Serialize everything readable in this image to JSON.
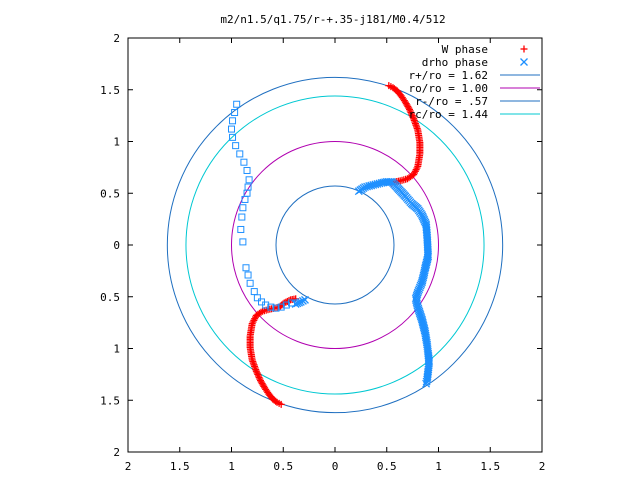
{
  "chart_data": {
    "type": "scatter",
    "title": "m2/n1.5/q1.75/r-+.35-j181/M0.4/512",
    "xlabel": "",
    "ylabel": "",
    "xlim": [
      -2,
      2
    ],
    "ylim": [
      -2,
      2
    ],
    "x_tick_labels": [
      "2",
      "1.5",
      "1",
      "0.5",
      "0",
      "0.5",
      "1",
      "1.5",
      "2"
    ],
    "x_tick_values": [
      -2,
      -1.5,
      -1,
      -0.5,
      0,
      0.5,
      1,
      1.5,
      2
    ],
    "y_tick_labels": [
      "2",
      "1.5",
      "1",
      "0.5",
      "0",
      "0.5",
      "1",
      "1.5",
      "2"
    ],
    "y_tick_values": [
      2,
      1.5,
      1,
      0.5,
      0,
      -0.5,
      -1,
      -1.5,
      -2
    ],
    "grid": false,
    "legend_position": "top-right",
    "colors": {
      "w_phase": "#ff0000",
      "drho_phase": "#1e90ff",
      "r_plus": "#1f6fc0",
      "r_o": "#b000b0",
      "r_minus": "#1f6fc0",
      "r_c": "#00c8d2",
      "axes": "#000000",
      "background": "#ffffff"
    },
    "circles": [
      {
        "name": "r+/ro = 1.62",
        "radius": 1.62,
        "color_key": "r_plus"
      },
      {
        "name": "ro/ro = 1.00",
        "radius": 1.0,
        "color_key": "r_o"
      },
      {
        "name": "r-/ro = .57",
        "radius": 0.57,
        "color_key": "r_minus"
      },
      {
        "name": "rc/ro = 1.44",
        "radius": 1.44,
        "color_key": "r_c"
      }
    ],
    "series": [
      {
        "name": "W phase",
        "marker": "plus",
        "color_key": "w_phase",
        "points": [
          [
            0.52,
            1.54
          ],
          [
            0.56,
            1.52
          ],
          [
            0.6,
            1.49
          ],
          [
            0.64,
            1.44
          ],
          [
            0.68,
            1.38
          ],
          [
            0.72,
            1.31
          ],
          [
            0.76,
            1.22
          ],
          [
            0.8,
            1.11
          ],
          [
            0.82,
            0.99
          ],
          [
            0.82,
            0.88
          ],
          [
            0.8,
            0.76
          ],
          [
            0.76,
            0.68
          ],
          [
            0.7,
            0.64
          ],
          [
            0.63,
            0.62
          ],
          [
            0.58,
            0.61
          ],
          [
            0.54,
            0.6
          ],
          [
            -0.52,
            -1.54
          ],
          [
            -0.56,
            -1.52
          ],
          [
            -0.6,
            -1.49
          ],
          [
            -0.64,
            -1.44
          ],
          [
            -0.68,
            -1.38
          ],
          [
            -0.72,
            -1.31
          ],
          [
            -0.76,
            -1.22
          ],
          [
            -0.8,
            -1.11
          ],
          [
            -0.82,
            -0.99
          ],
          [
            -0.82,
            -0.88
          ],
          [
            -0.8,
            -0.76
          ],
          [
            -0.76,
            -0.68
          ],
          [
            -0.7,
            -0.64
          ],
          [
            -0.63,
            -0.62
          ],
          [
            -0.58,
            -0.61
          ],
          [
            -0.54,
            -0.6
          ],
          [
            -0.49,
            -0.56
          ],
          [
            -0.43,
            -0.53
          ],
          [
            -0.38,
            -0.52
          ]
        ]
      },
      {
        "name": "drho phase",
        "marker": "cross",
        "color_key": "drho_phase",
        "points": [
          [
            0.23,
            0.52
          ],
          [
            0.26,
            0.54
          ],
          [
            0.29,
            0.56
          ],
          [
            0.33,
            0.57
          ],
          [
            0.37,
            0.58
          ],
          [
            0.41,
            0.59
          ],
          [
            0.45,
            0.6
          ],
          [
            0.5,
            0.61
          ],
          [
            0.55,
            0.61
          ],
          [
            0.68,
            0.47
          ],
          [
            0.74,
            0.4
          ],
          [
            0.8,
            0.35
          ],
          [
            0.84,
            0.29
          ],
          [
            0.88,
            0.2
          ],
          [
            0.89,
            0.09
          ],
          [
            0.9,
            -0.11
          ],
          [
            0.87,
            -0.23
          ],
          [
            0.86,
            -0.28
          ],
          [
            0.84,
            -0.36
          ],
          [
            0.8,
            -0.46
          ],
          [
            0.78,
            -0.52
          ],
          [
            0.8,
            -0.6
          ],
          [
            0.84,
            -0.72
          ],
          [
            0.87,
            -0.84
          ],
          [
            0.89,
            -0.96
          ],
          [
            0.9,
            -1.05
          ],
          [
            0.91,
            -1.13
          ],
          [
            0.9,
            -1.22
          ],
          [
            0.89,
            -1.3
          ],
          [
            0.88,
            -1.34
          ],
          [
            -0.29,
            -0.53
          ],
          [
            -0.33,
            -0.55
          ],
          [
            -0.38,
            -0.57
          ]
        ]
      },
      {
        "name": "drho phase squares",
        "marker": "square",
        "color_key": "drho_phase",
        "points": [
          [
            -0.95,
            1.36
          ],
          [
            -0.97,
            1.28
          ],
          [
            -0.99,
            1.2
          ],
          [
            -1.0,
            1.12
          ],
          [
            -0.99,
            1.04
          ],
          [
            -0.96,
            0.96
          ],
          [
            -0.92,
            0.88
          ],
          [
            -0.88,
            0.8
          ],
          [
            -0.85,
            0.72
          ],
          [
            -0.83,
            0.63
          ],
          [
            -0.84,
            0.56
          ],
          [
            -0.85,
            0.5
          ],
          [
            -0.87,
            0.44
          ],
          [
            -0.89,
            0.36
          ],
          [
            -0.9,
            0.27
          ],
          [
            -0.91,
            0.15
          ],
          [
            -0.89,
            0.03
          ],
          [
            -0.86,
            -0.22
          ],
          [
            -0.84,
            -0.29
          ],
          [
            -0.82,
            -0.37
          ],
          [
            -0.78,
            -0.45
          ],
          [
            -0.75,
            -0.51
          ],
          [
            -0.71,
            -0.55
          ],
          [
            -0.67,
            -0.58
          ],
          [
            -0.62,
            -0.6
          ],
          [
            -0.57,
            -0.61
          ],
          [
            -0.52,
            -0.6
          ],
          [
            -0.47,
            -0.58
          ],
          [
            -0.42,
            -0.56
          ]
        ]
      }
    ]
  }
}
